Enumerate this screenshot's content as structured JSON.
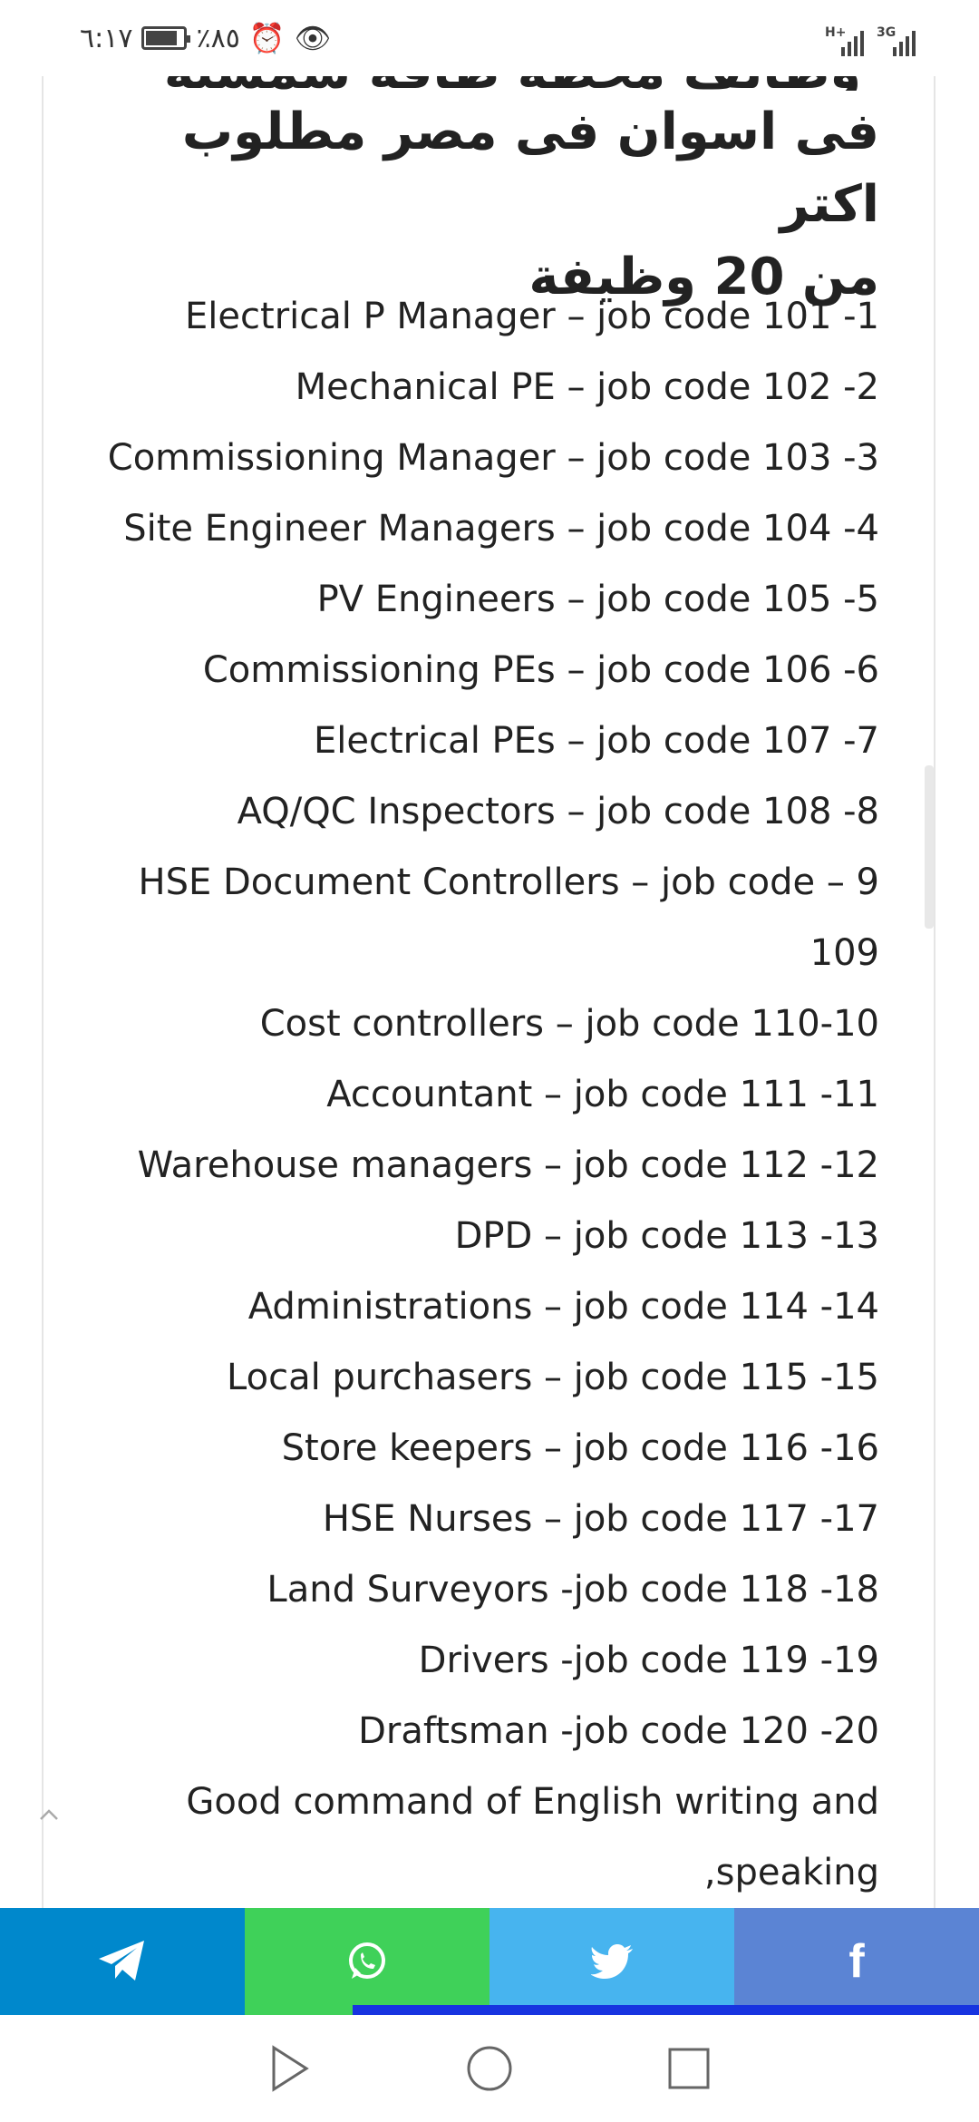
{
  "status_bar": {
    "time": "٦:١٧",
    "battery": "٪٨٥",
    "network_left": "H+",
    "network_right": "3G"
  },
  "article": {
    "title_hidden_line": "وظائف محطة طاقة شمسية",
    "title_line1": "فى اسوان فى مصر مطلوب اكتر",
    "title_line2": "من 20 وظيفة",
    "jobs": [
      "Electrical P Manager – job code 101 -1",
      "Mechanical PE – job code 102 -2",
      "Commissioning Manager – job code 103 -3",
      "Site Engineer Managers – job code 104 -4",
      "PV Engineers – job code 105 -5",
      "Commissioning PEs – job code 106 -6",
      "Electrical PEs – job code 107 -7",
      "AQ/QC Inspectors – job code 108 -8",
      "HSE Document Controllers – job code – 9 109",
      "Cost controllers – job code 110-10",
      "Accountant – job code 111 -11",
      "Warehouse managers – job code 112 -12",
      "DPD – job code 113 -13",
      "Administrations – job code 114 -14",
      "Local purchasers – job code 115 -15",
      "Store keepers – job code 116 -16",
      "HSE Nurses – job code 117 -17",
      "Land Surveyors -job code 118 -18",
      "Drivers -job code 119 -19",
      "Draftsman -job code 120 -20",
      "Good command of English writing and ,speaking"
    ]
  },
  "share_bar": {
    "buttons": [
      {
        "name": "telegram",
        "icon": "telegram-icon",
        "color": "#0088cc"
      },
      {
        "name": "whatsapp",
        "icon": "whatsapp-icon",
        "color": "#3fd159"
      },
      {
        "name": "twitter",
        "icon": "twitter-icon",
        "color": "#47b4ef"
      },
      {
        "name": "facebook",
        "icon": "facebook-icon",
        "color": "#5b84d4",
        "glyph": "f"
      }
    ],
    "progress_color": "#1733e0",
    "reading_progress": 0.64
  },
  "nav_bar": {
    "buttons": [
      "back",
      "home",
      "recents"
    ]
  }
}
